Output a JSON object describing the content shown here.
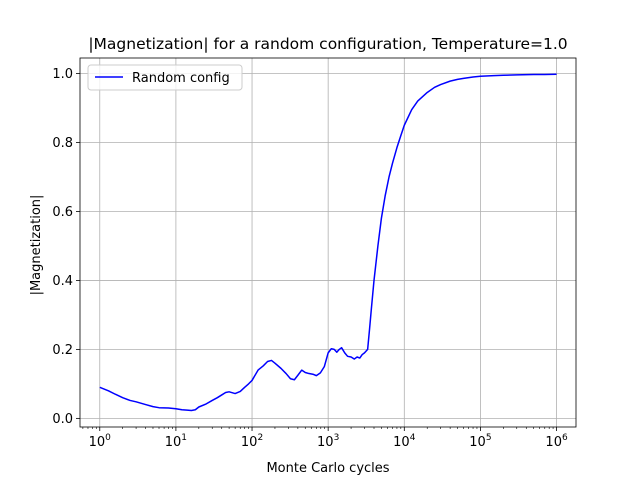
{
  "chart_data": {
    "type": "line",
    "title": "|Magnetization| for a random configuration, Temperature=1.0",
    "xlabel": "Monte Carlo cycles",
    "ylabel": "|Magnetization|",
    "xscale": "log",
    "xlim": [
      0.55,
      1800000
    ],
    "ylim": [
      -0.025,
      1.045
    ],
    "x_ticks": [
      {
        "value": 1,
        "base": "10",
        "exp": "0"
      },
      {
        "value": 10,
        "base": "10",
        "exp": "1"
      },
      {
        "value": 100,
        "base": "10",
        "exp": "2"
      },
      {
        "value": 1000,
        "base": "10",
        "exp": "3"
      },
      {
        "value": 10000,
        "base": "10",
        "exp": "4"
      },
      {
        "value": 100000,
        "base": "10",
        "exp": "5"
      },
      {
        "value": 1000000,
        "base": "10",
        "exp": "6"
      }
    ],
    "y_ticks": [
      {
        "value": 0.0,
        "label": "0.0"
      },
      {
        "value": 0.2,
        "label": "0.2"
      },
      {
        "value": 0.4,
        "label": "0.4"
      },
      {
        "value": 0.6,
        "label": "0.6"
      },
      {
        "value": 0.8,
        "label": "0.8"
      },
      {
        "value": 1.0,
        "label": "1.0"
      }
    ],
    "grid": true,
    "legend_position": "top-left",
    "series": [
      {
        "name": "Random config",
        "color": "#0000ff",
        "x": [
          1,
          1.3,
          1.6,
          2,
          2.5,
          3,
          4,
          5,
          6,
          8,
          10,
          12,
          14,
          16,
          18,
          20,
          25,
          30,
          35,
          40,
          45,
          50,
          60,
          70,
          80,
          90,
          100,
          120,
          140,
          160,
          180,
          200,
          240,
          280,
          320,
          360,
          400,
          450,
          500,
          560,
          630,
          700,
          790,
          890,
          1000,
          1100,
          1200,
          1300,
          1400,
          1500,
          1650,
          1800,
          2000,
          2200,
          2400,
          2600,
          2800,
          3000,
          3300,
          3500,
          3700,
          4000,
          4500,
          5000,
          5600,
          6300,
          7000,
          8000,
          9000,
          10000,
          12500,
          15000,
          20000,
          25000,
          30000,
          40000,
          50000,
          60000,
          80000,
          100000,
          150000,
          200000,
          300000,
          500000,
          700000,
          1000000
        ],
        "values": [
          0.09,
          0.08,
          0.07,
          0.06,
          0.052,
          0.048,
          0.04,
          0.034,
          0.031,
          0.03,
          0.028,
          0.025,
          0.024,
          0.023,
          0.025,
          0.033,
          0.042,
          0.052,
          0.06,
          0.068,
          0.075,
          0.077,
          0.072,
          0.078,
          0.09,
          0.1,
          0.11,
          0.14,
          0.152,
          0.165,
          0.168,
          0.16,
          0.145,
          0.13,
          0.115,
          0.112,
          0.125,
          0.14,
          0.133,
          0.13,
          0.128,
          0.124,
          0.132,
          0.15,
          0.19,
          0.202,
          0.2,
          0.192,
          0.2,
          0.205,
          0.19,
          0.18,
          0.178,
          0.172,
          0.178,
          0.175,
          0.185,
          0.19,
          0.2,
          0.26,
          0.32,
          0.4,
          0.5,
          0.58,
          0.645,
          0.7,
          0.74,
          0.785,
          0.82,
          0.85,
          0.895,
          0.92,
          0.945,
          0.96,
          0.968,
          0.978,
          0.983,
          0.986,
          0.99,
          0.992,
          0.994,
          0.995,
          0.996,
          0.997,
          0.997,
          0.998
        ]
      }
    ]
  }
}
